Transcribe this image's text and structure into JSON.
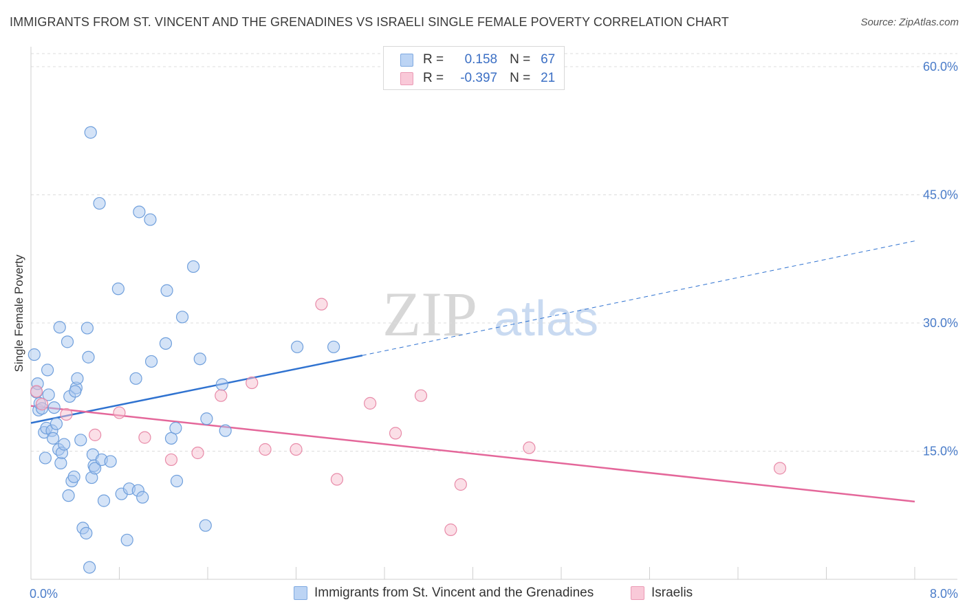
{
  "header": {
    "title": "IMMIGRANTS FROM ST. VINCENT AND THE GRENADINES VS ISRAELI SINGLE FEMALE POVERTY CORRELATION CHART",
    "source": "Source: ZipAtlas.com"
  },
  "legend": {
    "r_label": "R =",
    "n_label": "N =",
    "series1": {
      "r": "0.158",
      "n": "67"
    },
    "series2": {
      "r": "-0.397",
      "n": "21"
    }
  },
  "watermark": {
    "zip": "ZIP",
    "atlas": "atlas"
  },
  "colors": {
    "blue_fill": "#a9c8f0",
    "blue_stroke": "#6f9fdc",
    "blue_line": "#2f72d0",
    "pink_fill": "#f7bfd0",
    "pink_stroke": "#e88aa8",
    "pink_line": "#e4679a"
  },
  "chart_data": {
    "type": "scatter",
    "xlabel": "",
    "ylabel": "Single Female Poverty",
    "xlim": [
      0,
      8
    ],
    "ylim": [
      0,
      60
    ],
    "x_tick_labels": [
      "0.0%",
      "8.0%"
    ],
    "y_ticks": [
      15,
      30,
      45,
      60
    ],
    "y_tick_labels": [
      "15.0%",
      "30.0%",
      "45.0%",
      "60.0%"
    ],
    "grid": "horizontal dashed",
    "legend_position": "top-center and bottom",
    "series": [
      {
        "name": "Immigrants from St. Vincent and the Grenadines",
        "R": 0.158,
        "N": 67,
        "trend": {
          "x": [
            0.0,
            3.0
          ],
          "y": [
            18.3,
            26.2
          ],
          "dashed_to": [
            8.0,
            39.6
          ]
        },
        "points": [
          [
            0.03,
            26.3
          ],
          [
            0.05,
            21.9
          ],
          [
            0.06,
            22.9
          ],
          [
            0.07,
            19.8
          ],
          [
            0.08,
            20.6
          ],
          [
            0.1,
            20.0
          ],
          [
            0.12,
            17.2
          ],
          [
            0.13,
            14.2
          ],
          [
            0.14,
            17.7
          ],
          [
            0.15,
            24.5
          ],
          [
            0.16,
            21.6
          ],
          [
            0.19,
            17.4
          ],
          [
            0.2,
            16.5
          ],
          [
            0.21,
            20.1
          ],
          [
            0.23,
            18.2
          ],
          [
            0.25,
            15.2
          ],
          [
            0.26,
            29.5
          ],
          [
            0.27,
            13.6
          ],
          [
            0.28,
            14.8
          ],
          [
            0.3,
            15.8
          ],
          [
            0.33,
            27.8
          ],
          [
            0.34,
            9.8
          ],
          [
            0.35,
            21.4
          ],
          [
            0.37,
            11.5
          ],
          [
            0.39,
            12.0
          ],
          [
            0.41,
            22.4
          ],
          [
            0.42,
            23.5
          ],
          [
            0.45,
            16.3
          ],
          [
            0.47,
            6.0
          ],
          [
            0.5,
            5.4
          ],
          [
            0.51,
            29.4
          ],
          [
            0.52,
            26.0
          ],
          [
            0.54,
            52.3
          ],
          [
            0.55,
            11.9
          ],
          [
            0.56,
            14.6
          ],
          [
            0.57,
            13.3
          ],
          [
            0.58,
            13.0
          ],
          [
            0.62,
            44.0
          ],
          [
            0.64,
            14.0
          ],
          [
            0.66,
            9.2
          ],
          [
            0.72,
            13.8
          ],
          [
            0.79,
            34.0
          ],
          [
            0.82,
            10.0
          ],
          [
            0.87,
            4.6
          ],
          [
            0.89,
            10.6
          ],
          [
            0.95,
            23.5
          ],
          [
            0.97,
            10.4
          ],
          [
            0.98,
            43.0
          ],
          [
            1.01,
            9.6
          ],
          [
            1.08,
            42.1
          ],
          [
            1.09,
            25.5
          ],
          [
            1.22,
            27.6
          ],
          [
            1.23,
            33.8
          ],
          [
            1.27,
            16.5
          ],
          [
            1.31,
            17.7
          ],
          [
            1.32,
            11.5
          ],
          [
            1.37,
            30.7
          ],
          [
            1.47,
            36.6
          ],
          [
            1.53,
            25.8
          ],
          [
            1.58,
            6.3
          ],
          [
            1.59,
            18.8
          ],
          [
            1.73,
            22.8
          ],
          [
            1.76,
            17.4
          ],
          [
            2.41,
            27.2
          ],
          [
            2.74,
            27.2
          ],
          [
            0.4,
            22.0
          ],
          [
            0.53,
            1.4
          ]
        ]
      },
      {
        "name": "Israelis",
        "R": -0.397,
        "N": 21,
        "trend": {
          "x": [
            0.0,
            8.0
          ],
          "y": [
            20.3,
            9.1
          ]
        },
        "points": [
          [
            0.05,
            22.0
          ],
          [
            0.1,
            20.5
          ],
          [
            0.32,
            19.3
          ],
          [
            0.58,
            16.9
          ],
          [
            0.8,
            19.5
          ],
          [
            1.03,
            16.6
          ],
          [
            1.27,
            14.0
          ],
          [
            1.51,
            14.8
          ],
          [
            1.72,
            21.5
          ],
          [
            2.0,
            23.0
          ],
          [
            2.12,
            15.2
          ],
          [
            2.4,
            15.2
          ],
          [
            2.63,
            32.2
          ],
          [
            2.77,
            11.7
          ],
          [
            3.07,
            20.6
          ],
          [
            3.3,
            17.1
          ],
          [
            3.53,
            21.5
          ],
          [
            3.8,
            5.8
          ],
          [
            3.89,
            11.1
          ],
          [
            4.51,
            15.4
          ],
          [
            6.78,
            13.0
          ]
        ]
      }
    ]
  }
}
